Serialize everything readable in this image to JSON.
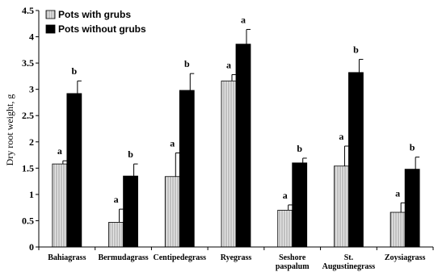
{
  "chart_data": {
    "type": "bar",
    "title": "",
    "xlabel": "",
    "ylabel": "Dry root weight,  g",
    "ylim": [
      0,
      4.5
    ],
    "yticks": [
      "0",
      "0.5",
      "1",
      "1.5",
      "2",
      "2.5",
      "3",
      "3.5",
      "4",
      "4.5"
    ],
    "grid": false,
    "legend_position": "top-left",
    "categories": [
      [
        "Bahiagrass"
      ],
      [
        "Bermudagrass"
      ],
      [
        "Centipedegrass"
      ],
      [
        "Ryegrass"
      ],
      [
        "Seshore",
        "paspalum"
      ],
      [
        "St.",
        "Augustinegrass"
      ],
      [
        "Zoysiagrass"
      ]
    ],
    "series": [
      {
        "name": "Pots with grubs",
        "color": "#d4d4d4",
        "pattern": "vertical-hatch",
        "values": [
          1.58,
          0.47,
          1.34,
          3.16,
          0.7,
          1.54,
          0.66
        ],
        "errors": [
          0.06,
          0.25,
          0.45,
          0.12,
          0.1,
          0.38,
          0.18
        ],
        "significance": [
          "a",
          "a",
          "a",
          "a",
          "a",
          "a",
          "a"
        ]
      },
      {
        "name": "Pots without grubs",
        "color": "#000000",
        "pattern": "solid",
        "values": [
          2.92,
          1.35,
          2.98,
          3.86,
          1.6,
          3.32,
          1.48
        ],
        "errors": [
          0.24,
          0.23,
          0.32,
          0.28,
          0.09,
          0.25,
          0.23
        ],
        "significance": [
          "b",
          "b",
          "b",
          "a",
          "b",
          "b",
          "b"
        ]
      }
    ]
  }
}
